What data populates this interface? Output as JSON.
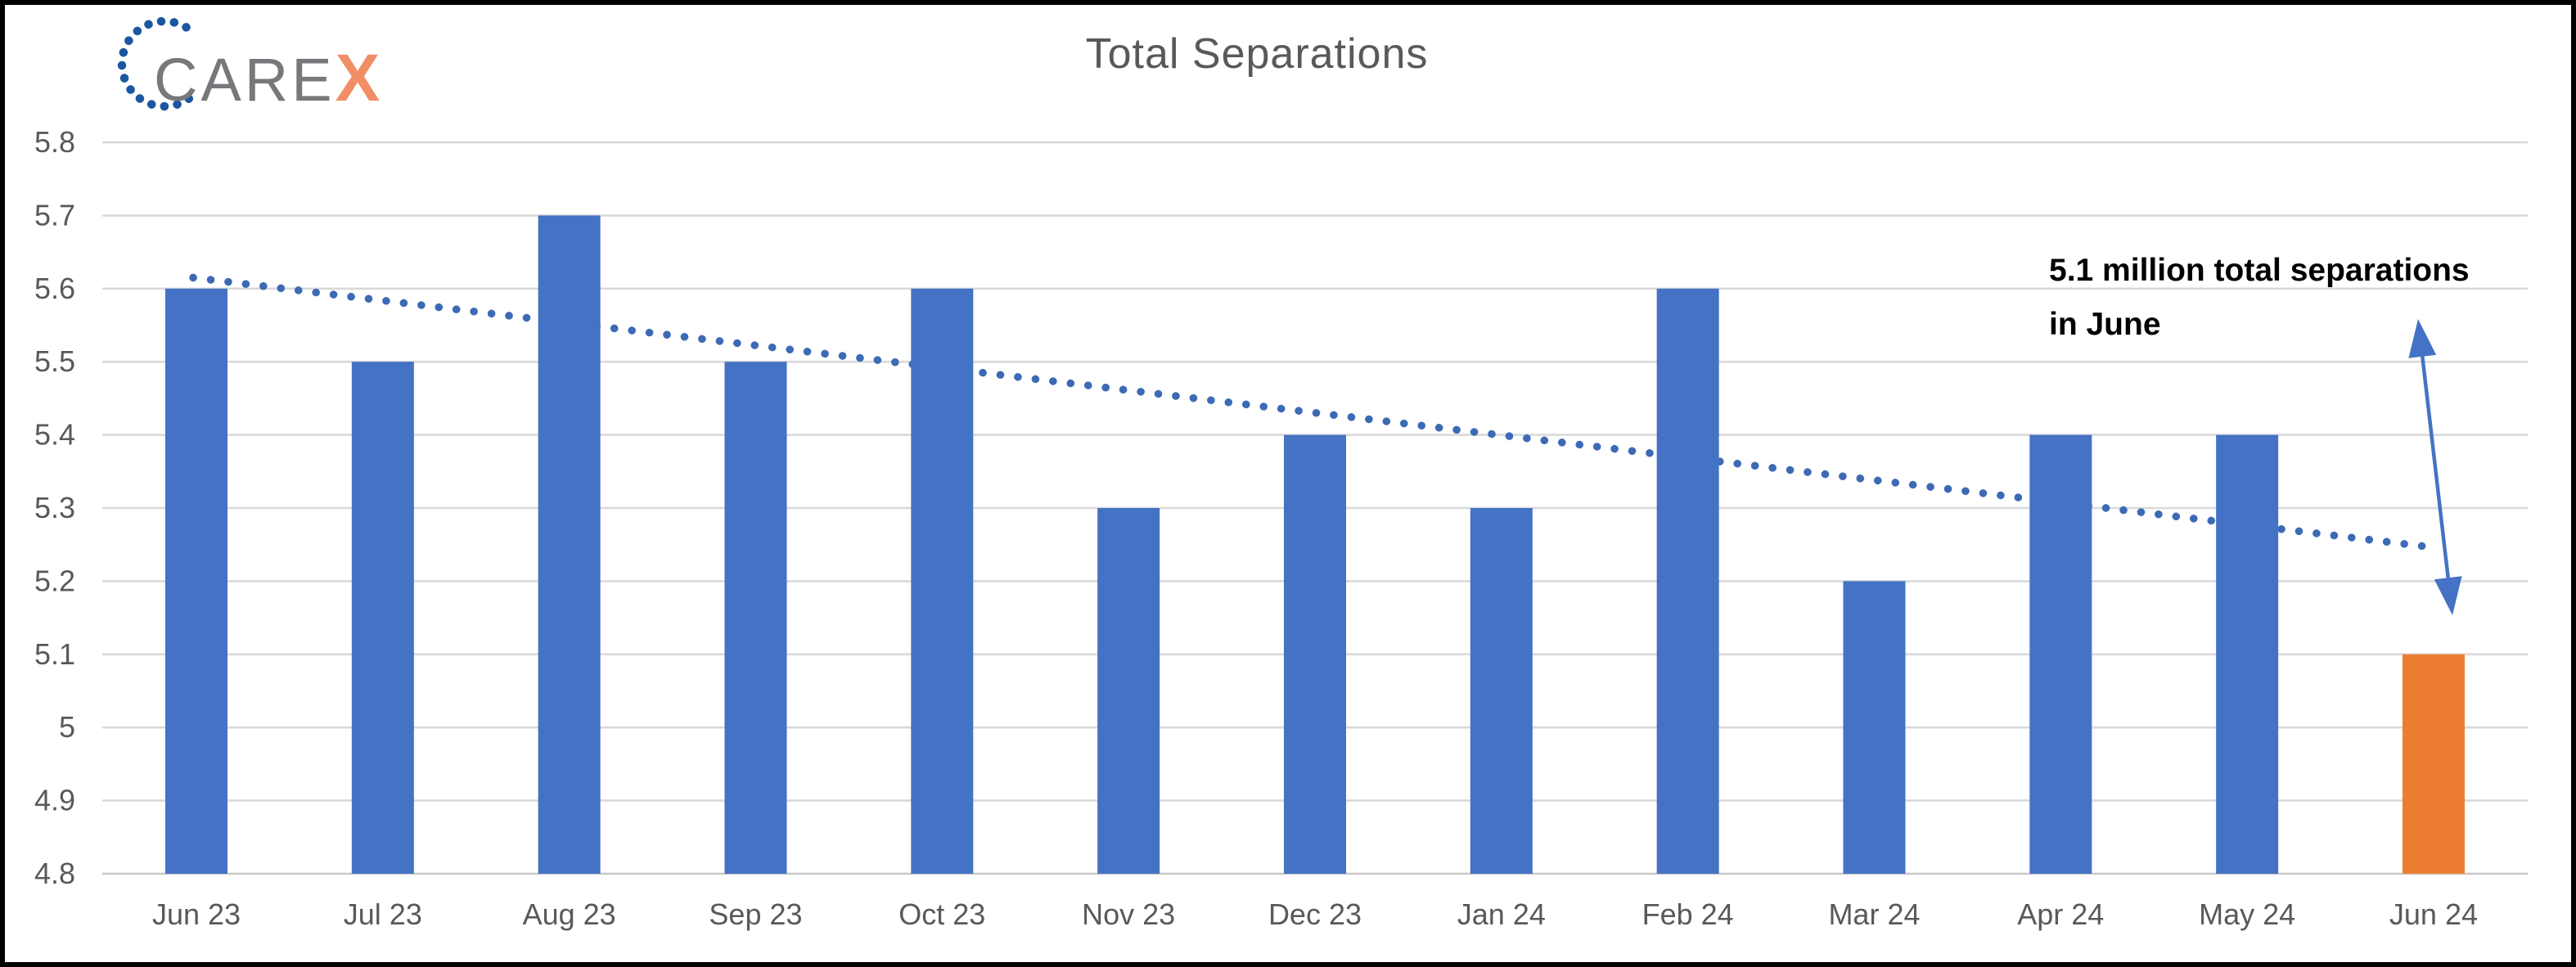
{
  "logo": {
    "care": "CARE",
    "x": "X"
  },
  "annotation": {
    "line1": "5.1 million total separations",
    "line2": "in June"
  },
  "colors": {
    "bar": "#4472C4",
    "highlight_bar": "#ED7D31",
    "trendline": "#3D6AB5",
    "arrow": "#4472C4",
    "gridline": "#D9D9D9",
    "baseline": "#C8C8C8",
    "axis_text": "#595959",
    "title_text": "#595959",
    "annotation_text": "#000000",
    "logo_dots": "#1A57A0",
    "logo_care": "#77787B",
    "logo_x": "#F28E66"
  },
  "chart_data": {
    "type": "bar",
    "title": "Total Separations",
    "categories": [
      "Jun 23",
      "Jul 23",
      "Aug 23",
      "Sep 23",
      "Oct 23",
      "Nov 23",
      "Dec 23",
      "Jan 24",
      "Feb 24",
      "Mar 24",
      "Apr 24",
      "May 24",
      "Jun 24"
    ],
    "values": [
      5.6,
      5.5,
      5.7,
      5.5,
      5.6,
      5.3,
      5.4,
      5.3,
      5.6,
      5.2,
      5.4,
      5.4,
      5.1
    ],
    "highlight_index": 12,
    "ylim": [
      4.8,
      5.8
    ],
    "yticks": [
      4.8,
      4.9,
      5,
      5.1,
      5.2,
      5.3,
      5.4,
      5.5,
      5.6,
      5.7,
      5.8
    ],
    "ytick_labels": [
      "4.8",
      "4.9",
      "5",
      "5.1",
      "5.2",
      "5.3",
      "5.4",
      "5.5",
      "5.6",
      "5.7",
      "5.8"
    ],
    "gridlines": true,
    "legend": "none",
    "xlabel": "",
    "ylabel": "",
    "trendline": {
      "style": "dotted",
      "start_value": 5.615,
      "end_value": 5.248
    }
  }
}
